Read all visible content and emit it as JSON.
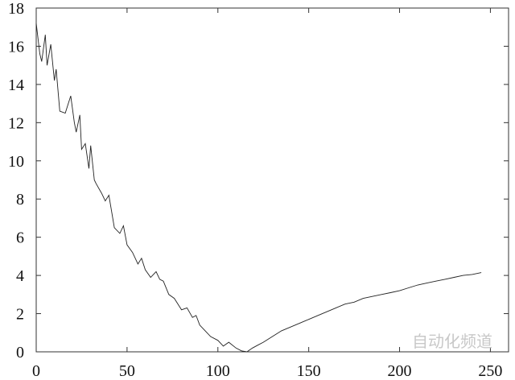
{
  "chart_data": {
    "type": "line",
    "title": "",
    "xlabel": "",
    "ylabel": "",
    "xlim": [
      0,
      260
    ],
    "ylim": [
      0,
      18
    ],
    "grid": false,
    "x_ticks": [
      "0",
      "50",
      "100",
      "150",
      "200",
      "250"
    ],
    "y_ticks": [
      "0",
      "2",
      "4",
      "6",
      "8",
      "10",
      "12",
      "14",
      "16",
      "18"
    ],
    "line_color": "#222222",
    "series": [
      {
        "x": [
          0,
          2,
          3,
          5,
          6,
          8,
          10,
          11,
          13,
          16,
          19,
          21,
          22,
          24,
          25,
          27,
          29,
          30,
          32,
          33,
          36,
          38,
          40,
          43,
          46,
          48,
          50,
          53,
          56,
          58,
          60,
          63,
          66,
          68,
          70,
          73,
          76,
          80,
          83,
          86,
          88,
          90,
          93,
          96,
          100,
          103,
          106,
          110,
          113,
          116,
          119,
          122,
          125,
          130,
          135,
          140,
          145,
          150,
          155,
          160,
          165,
          170,
          175,
          180,
          185,
          190,
          195,
          200,
          205,
          210,
          215,
          220,
          225,
          230,
          235,
          240,
          245
        ],
        "y": [
          17.2,
          15.6,
          15.2,
          16.6,
          15.0,
          16.1,
          14.2,
          14.8,
          12.6,
          12.5,
          13.4,
          12.0,
          11.5,
          12.4,
          10.6,
          10.9,
          9.6,
          10.8,
          9.0,
          8.8,
          8.3,
          7.9,
          8.2,
          6.5,
          6.2,
          6.6,
          5.6,
          5.2,
          4.6,
          4.9,
          4.3,
          3.9,
          4.2,
          3.8,
          3.7,
          3.0,
          2.8,
          2.2,
          2.3,
          1.8,
          1.9,
          1.4,
          1.1,
          0.8,
          0.6,
          0.3,
          0.5,
          0.2,
          0.05,
          0.0,
          0.2,
          0.35,
          0.5,
          0.8,
          1.1,
          1.3,
          1.5,
          1.7,
          1.9,
          2.1,
          2.3,
          2.5,
          2.6,
          2.8,
          2.9,
          3.0,
          3.1,
          3.2,
          3.35,
          3.5,
          3.6,
          3.7,
          3.8,
          3.9,
          4.0,
          4.05,
          4.15
        ]
      }
    ]
  },
  "watermark": "自动化频道"
}
